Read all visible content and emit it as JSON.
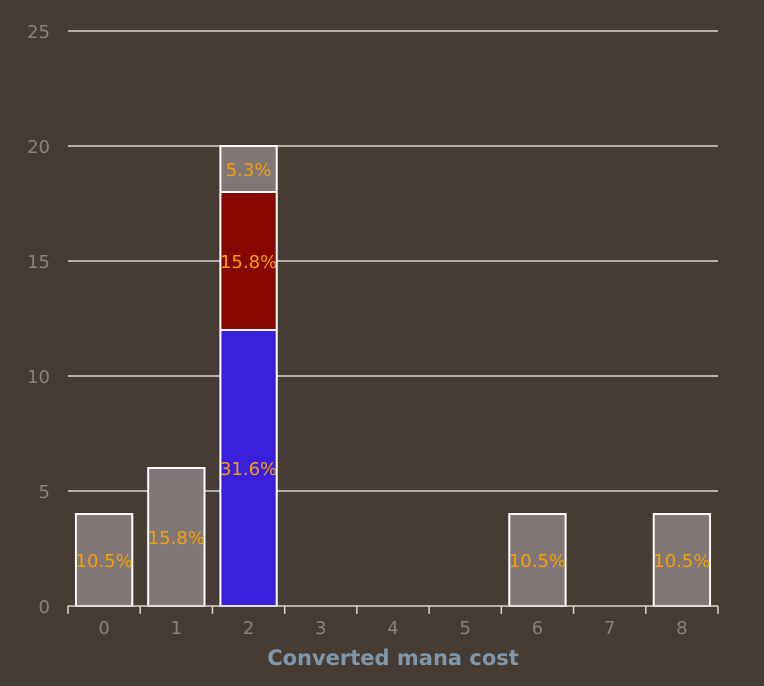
{
  "chart_data": {
    "type": "bar",
    "stacked": true,
    "xlabel": "Converted mana cost",
    "ylabel": "",
    "ylim": [
      0,
      25
    ],
    "yticks": [
      0,
      5,
      10,
      15,
      20,
      25
    ],
    "categories": [
      "0",
      "1",
      "2",
      "3",
      "4",
      "5",
      "6",
      "7",
      "8"
    ],
    "grid": true,
    "series": [
      {
        "color": "#3a20dc",
        "values": [
          0,
          0,
          12,
          0,
          0,
          0,
          0,
          0,
          0
        ],
        "labels": [
          "",
          "",
          "31.6%",
          "",
          "",
          "",
          "",
          "",
          ""
        ]
      },
      {
        "color": "#850700",
        "values": [
          0,
          0,
          6,
          0,
          0,
          0,
          0,
          0,
          0
        ],
        "labels": [
          "",
          "",
          "15.8%",
          "",
          "",
          "",
          "",
          "",
          ""
        ]
      },
      {
        "color": "#827777",
        "values": [
          4,
          6,
          2,
          0,
          0,
          0,
          4,
          0,
          4
        ],
        "labels": [
          "10.5%",
          "15.8%",
          "5.3%",
          "",
          "",
          "",
          "10.5%",
          "",
          "10.5%"
        ]
      }
    ]
  }
}
